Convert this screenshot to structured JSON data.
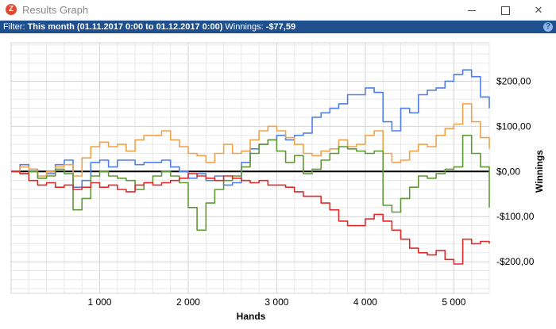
{
  "window": {
    "icon_letter": "Z",
    "title": "Results Graph",
    "minimize_label": "",
    "maximize_label": "",
    "close_label": "✕"
  },
  "filter": {
    "prefix": "Filter:",
    "range": "This month (01.11.2017 0:00 to 01.12.2017 0:00)",
    "winnings_label": "Winnings:",
    "winnings_value": "-$77,59",
    "help_glyph": "?"
  },
  "chart_data": {
    "type": "line",
    "xlabel": "Hands",
    "ylabel": "Winnings",
    "xlim": [
      0,
      5400
    ],
    "ylim": [
      -270,
      285
    ],
    "x_ticks": [
      1000,
      2000,
      3000,
      4000,
      5000
    ],
    "x_tick_labels": [
      "1 000",
      "2 000",
      "3 000",
      "4 000",
      "5 000"
    ],
    "y_ticks": [
      200,
      100,
      0,
      -100,
      -200
    ],
    "y_tick_labels": [
      "$200,00",
      "$100,00",
      "$0,00",
      "-$100,00",
      "-$200,00"
    ],
    "grid": true,
    "legend": "none",
    "series": [
      {
        "color": "#4f7fe6",
        "points": [
          [
            0,
            0
          ],
          [
            100,
            15
          ],
          [
            200,
            5
          ],
          [
            300,
            -15
          ],
          [
            400,
            -5
          ],
          [
            500,
            15
          ],
          [
            600,
            25
          ],
          [
            700,
            -35
          ],
          [
            800,
            -20
          ],
          [
            900,
            20
          ],
          [
            1000,
            25
          ],
          [
            1100,
            10
          ],
          [
            1200,
            25
          ],
          [
            1300,
            25
          ],
          [
            1400,
            15
          ],
          [
            1500,
            20
          ],
          [
            1600,
            20
          ],
          [
            1700,
            25
          ],
          [
            1800,
            10
          ],
          [
            1900,
            0
          ],
          [
            2000,
            -15
          ],
          [
            2100,
            -5
          ],
          [
            2200,
            -20
          ],
          [
            2300,
            -10
          ],
          [
            2400,
            -30
          ],
          [
            2500,
            -25
          ],
          [
            2600,
            20
          ],
          [
            2700,
            50
          ],
          [
            2800,
            60
          ],
          [
            2900,
            70
          ],
          [
            3000,
            80
          ],
          [
            3100,
            70
          ],
          [
            3200,
            80
          ],
          [
            3300,
            85
          ],
          [
            3400,
            120
          ],
          [
            3500,
            130
          ],
          [
            3600,
            140
          ],
          [
            3700,
            150
          ],
          [
            3800,
            170
          ],
          [
            3900,
            170
          ],
          [
            4000,
            185
          ],
          [
            4100,
            175
          ],
          [
            4200,
            110
          ],
          [
            4300,
            90
          ],
          [
            4400,
            140
          ],
          [
            4500,
            130
          ],
          [
            4600,
            170
          ],
          [
            4700,
            180
          ],
          [
            4800,
            185
          ],
          [
            4900,
            200
          ],
          [
            5000,
            215
          ],
          [
            5100,
            225
          ],
          [
            5200,
            210
          ],
          [
            5300,
            165
          ],
          [
            5400,
            140
          ]
        ]
      },
      {
        "color": "#f0a24a",
        "points": [
          [
            0,
            0
          ],
          [
            100,
            10
          ],
          [
            200,
            5
          ],
          [
            300,
            -10
          ],
          [
            400,
            0
          ],
          [
            500,
            10
          ],
          [
            600,
            15
          ],
          [
            700,
            -10
          ],
          [
            800,
            30
          ],
          [
            900,
            55
          ],
          [
            1000,
            65
          ],
          [
            1100,
            55
          ],
          [
            1200,
            60
          ],
          [
            1300,
            45
          ],
          [
            1400,
            70
          ],
          [
            1500,
            80
          ],
          [
            1600,
            80
          ],
          [
            1700,
            90
          ],
          [
            1800,
            70
          ],
          [
            1900,
            55
          ],
          [
            2000,
            40
          ],
          [
            2100,
            35
          ],
          [
            2200,
            20
          ],
          [
            2300,
            40
          ],
          [
            2400,
            60
          ],
          [
            2500,
            40
          ],
          [
            2600,
            45
          ],
          [
            2700,
            70
          ],
          [
            2800,
            90
          ],
          [
            2900,
            100
          ],
          [
            3000,
            90
          ],
          [
            3100,
            75
          ],
          [
            3200,
            60
          ],
          [
            3300,
            40
          ],
          [
            3400,
            35
          ],
          [
            3500,
            45
          ],
          [
            3600,
            50
          ],
          [
            3700,
            70
          ],
          [
            3800,
            55
          ],
          [
            3900,
            60
          ],
          [
            4000,
            80
          ],
          [
            4100,
            90
          ],
          [
            4200,
            40
          ],
          [
            4300,
            20
          ],
          [
            4400,
            25
          ],
          [
            4500,
            45
          ],
          [
            4600,
            60
          ],
          [
            4700,
            55
          ],
          [
            4800,
            80
          ],
          [
            4900,
            95
          ],
          [
            5000,
            105
          ],
          [
            5100,
            150
          ],
          [
            5200,
            110
          ],
          [
            5300,
            75
          ],
          [
            5400,
            50
          ]
        ]
      },
      {
        "color": "#5e9935",
        "points": [
          [
            0,
            0
          ],
          [
            100,
            -5
          ],
          [
            200,
            0
          ],
          [
            300,
            -15
          ],
          [
            400,
            -10
          ],
          [
            500,
            5
          ],
          [
            600,
            -5
          ],
          [
            700,
            -85
          ],
          [
            800,
            -60
          ],
          [
            900,
            -10
          ],
          [
            1000,
            0
          ],
          [
            1100,
            -10
          ],
          [
            1200,
            -15
          ],
          [
            1300,
            -20
          ],
          [
            1400,
            -40
          ],
          [
            1500,
            -25
          ],
          [
            1600,
            -10
          ],
          [
            1700,
            0
          ],
          [
            1800,
            -10
          ],
          [
            1900,
            -25
          ],
          [
            2000,
            -80
          ],
          [
            2100,
            -130
          ],
          [
            2200,
            -70
          ],
          [
            2300,
            -40
          ],
          [
            2400,
            -20
          ],
          [
            2500,
            -10
          ],
          [
            2600,
            10
          ],
          [
            2700,
            40
          ],
          [
            2800,
            60
          ],
          [
            2900,
            70
          ],
          [
            3000,
            45
          ],
          [
            3100,
            20
          ],
          [
            3200,
            35
          ],
          [
            3300,
            -5
          ],
          [
            3400,
            5
          ],
          [
            3500,
            25
          ],
          [
            3600,
            40
          ],
          [
            3700,
            55
          ],
          [
            3800,
            50
          ],
          [
            3900,
            45
          ],
          [
            4000,
            40
          ],
          [
            4100,
            45
          ],
          [
            4200,
            -75
          ],
          [
            4300,
            -90
          ],
          [
            4400,
            -60
          ],
          [
            4500,
            -35
          ],
          [
            4600,
            -10
          ],
          [
            4700,
            -15
          ],
          [
            4800,
            -5
          ],
          [
            4900,
            5
          ],
          [
            5000,
            10
          ],
          [
            5100,
            80
          ],
          [
            5200,
            40
          ],
          [
            5300,
            10
          ],
          [
            5400,
            -80
          ]
        ]
      },
      {
        "color": "#e02a2a",
        "points": [
          [
            0,
            0
          ],
          [
            100,
            -5
          ],
          [
            200,
            -20
          ],
          [
            300,
            -30
          ],
          [
            400,
            -25
          ],
          [
            500,
            -35
          ],
          [
            600,
            -30
          ],
          [
            700,
            -40
          ],
          [
            800,
            -35
          ],
          [
            900,
            -25
          ],
          [
            1000,
            -35
          ],
          [
            1100,
            -30
          ],
          [
            1200,
            -40
          ],
          [
            1300,
            -45
          ],
          [
            1400,
            -30
          ],
          [
            1500,
            -25
          ],
          [
            1600,
            -30
          ],
          [
            1700,
            -25
          ],
          [
            1800,
            -20
          ],
          [
            1900,
            -15
          ],
          [
            2000,
            -5
          ],
          [
            2100,
            -10
          ],
          [
            2200,
            -15
          ],
          [
            2300,
            -20
          ],
          [
            2400,
            -10
          ],
          [
            2500,
            -15
          ],
          [
            2600,
            -20
          ],
          [
            2700,
            -25
          ],
          [
            2800,
            -20
          ],
          [
            2900,
            -30
          ],
          [
            3000,
            -30
          ],
          [
            3100,
            -35
          ],
          [
            3200,
            -45
          ],
          [
            3300,
            -55
          ],
          [
            3400,
            -55
          ],
          [
            3500,
            -70
          ],
          [
            3600,
            -85
          ],
          [
            3700,
            -110
          ],
          [
            3800,
            -120
          ],
          [
            3900,
            -120
          ],
          [
            4000,
            -105
          ],
          [
            4100,
            -95
          ],
          [
            4200,
            -110
          ],
          [
            4300,
            -130
          ],
          [
            4400,
            -150
          ],
          [
            4500,
            -170
          ],
          [
            4600,
            -180
          ],
          [
            4700,
            -185
          ],
          [
            4800,
            -175
          ],
          [
            4900,
            -195
          ],
          [
            5000,
            -205
          ],
          [
            5100,
            -150
          ],
          [
            5200,
            -160
          ],
          [
            5300,
            -155
          ],
          [
            5400,
            -160
          ]
        ]
      }
    ]
  }
}
